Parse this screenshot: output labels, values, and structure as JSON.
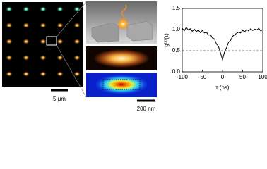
{
  "figure": {
    "scale_bar_left": "5 μm",
    "scale_bar_right": "200 nm"
  },
  "chart_data": {
    "type": "line",
    "xlabel": "τ (ns)",
    "ylabel": "g⁽²⁾(τ)",
    "x": [
      -100,
      -95,
      -90,
      -85,
      -80,
      -75,
      -70,
      -65,
      -60,
      -55,
      -50,
      -45,
      -40,
      -35,
      -30,
      -25,
      -20,
      -15,
      -10,
      -5,
      0,
      5,
      10,
      15,
      20,
      25,
      30,
      35,
      40,
      45,
      50,
      55,
      60,
      65,
      70,
      75,
      80,
      85,
      90,
      95,
      100
    ],
    "values": [
      1.03,
      0.97,
      1.05,
      0.99,
      1.02,
      0.96,
      1.01,
      0.95,
      0.99,
      0.93,
      0.98,
      0.92,
      0.94,
      0.87,
      0.88,
      0.8,
      0.78,
      0.66,
      0.6,
      0.45,
      0.29,
      0.47,
      0.57,
      0.7,
      0.74,
      0.84,
      0.88,
      0.91,
      0.94,
      0.92,
      0.98,
      0.95,
      1.0,
      0.97,
      1.02,
      0.98,
      1.01,
      0.99,
      1.03,
      0.97,
      1.0
    ],
    "color": "#000000",
    "reference_line": 0.5,
    "xlim": [
      -100,
      100
    ],
    "xticks": [
      -100,
      -50,
      0,
      50,
      100
    ],
    "ylim": [
      0,
      1.5
    ],
    "yticks": [
      {
        "value": 0,
        "label": "0.0"
      },
      0.5,
      {
        "value": 1,
        "label": "1.0"
      },
      {
        "value": 1.5,
        "label": "1.5"
      }
    ]
  }
}
